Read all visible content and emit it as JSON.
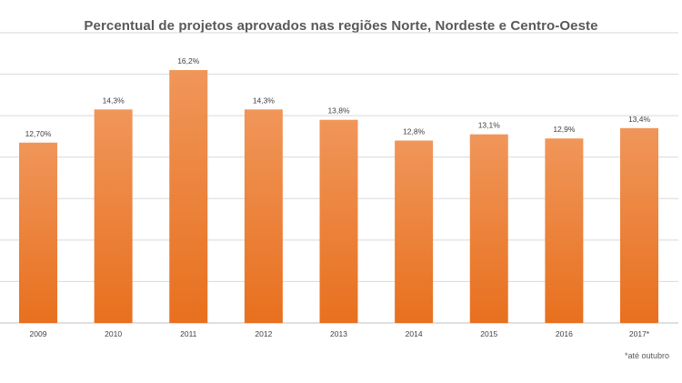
{
  "chart_data": {
    "type": "bar",
    "title": "Percentual de projetos aprovados nas regiões Norte, Nordeste e Centro-Oeste",
    "categories": [
      "2009",
      "2010",
      "2011",
      "2012",
      "2013",
      "2014",
      "2015",
      "2016",
      "2017*"
    ],
    "values": [
      12.7,
      14.3,
      16.2,
      14.3,
      13.8,
      12.8,
      13.1,
      12.9,
      13.4
    ],
    "data_labels": [
      "12,70%",
      "14,3%",
      "16,2%",
      "14,3%",
      "13,8%",
      "12,8%",
      "13,1%",
      "12,9%",
      "13,4%"
    ],
    "xlabel": "",
    "ylabel": "",
    "ylim": [
      4,
      18
    ],
    "grid": true,
    "bar_color_top": "#f0965a",
    "bar_color_bottom": "#e8701e",
    "grid_color": "#d9d9d9",
    "text_color": "#404040"
  },
  "footnote": "*até outubro"
}
